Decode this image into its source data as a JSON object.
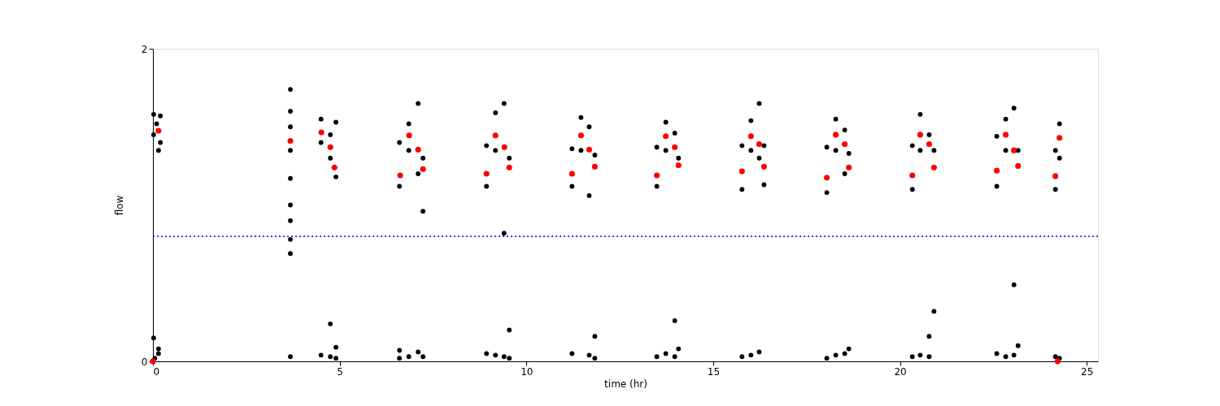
{
  "chart_data": {
    "type": "scatter",
    "xlabel": "time (hr)",
    "ylabel": "flow",
    "xlim": [
      0,
      25.3
    ],
    "ylim": [
      0,
      2
    ],
    "xticks": [
      0,
      5,
      10,
      15,
      20,
      25
    ],
    "yticks": [
      0,
      2
    ],
    "grid": false,
    "marker": "circle",
    "series": [
      {
        "color": "#000000",
        "x": [
          0.02,
          0.02,
          0.1,
          0.15,
          0.2,
          0.2,
          0.02,
          0.15,
          0.15,
          0.05,
          3.68,
          3.68,
          3.68,
          3.68,
          3.68,
          3.68,
          3.68,
          3.68,
          3.68,
          3.68,
          4.5,
          4.5,
          4.5,
          4.75,
          4.75,
          4.75,
          4.75,
          4.9,
          4.9,
          4.9,
          4.9,
          6.6,
          6.6,
          6.6,
          6.6,
          6.85,
          6.85,
          6.85,
          7.1,
          7.1,
          7.1,
          7.23,
          7.23,
          7.23,
          8.93,
          8.93,
          8.93,
          9.17,
          9.17,
          9.17,
          9.4,
          9.4,
          9.4,
          9.54,
          9.54,
          9.54,
          11.22,
          11.22,
          11.22,
          11.46,
          11.46,
          11.68,
          11.68,
          11.68,
          11.83,
          11.83,
          11.83,
          13.49,
          13.49,
          13.49,
          13.73,
          13.73,
          13.73,
          13.97,
          13.97,
          13.97,
          14.07,
          14.07,
          15.77,
          15.77,
          15.77,
          16.01,
          16.01,
          16.01,
          16.23,
          16.23,
          16.23,
          16.36,
          16.36,
          18.04,
          18.04,
          18.04,
          18.28,
          18.28,
          18.28,
          18.52,
          18.52,
          18.52,
          18.63,
          18.63,
          20.33,
          20.33,
          20.33,
          20.54,
          20.54,
          20.54,
          20.78,
          20.78,
          20.78,
          20.91,
          20.91,
          22.59,
          22.59,
          22.59,
          22.83,
          22.83,
          22.83,
          23.05,
          23.05,
          23.05,
          23.16,
          23.16,
          24.16,
          24.16,
          24.16,
          24.27,
          24.27,
          24.27
        ],
        "values": [
          1.58,
          1.45,
          1.52,
          1.35,
          1.57,
          1.4,
          0.15,
          0.08,
          0.05,
          0.02,
          1.74,
          1.6,
          1.5,
          1.35,
          1.17,
          1.0,
          0.9,
          0.78,
          0.69,
          0.03,
          1.55,
          1.4,
          0.04,
          1.45,
          1.3,
          0.24,
          0.03,
          1.53,
          1.18,
          0.09,
          0.02,
          1.4,
          1.12,
          0.07,
          0.02,
          1.52,
          1.35,
          0.03,
          1.65,
          1.2,
          0.06,
          1.3,
          0.96,
          0.03,
          1.38,
          1.12,
          0.05,
          1.59,
          1.35,
          0.04,
          1.65,
          0.82,
          0.03,
          1.3,
          0.2,
          0.02,
          1.36,
          1.12,
          0.05,
          1.56,
          1.35,
          1.5,
          1.06,
          0.04,
          1.32,
          0.16,
          0.02,
          1.37,
          1.12,
          0.03,
          1.53,
          1.35,
          0.05,
          1.46,
          0.26,
          0.03,
          1.3,
          0.08,
          1.38,
          1.1,
          0.03,
          1.54,
          1.35,
          0.04,
          1.65,
          1.3,
          0.06,
          1.38,
          1.13,
          1.37,
          1.08,
          0.02,
          1.55,
          1.35,
          0.04,
          1.48,
          1.2,
          0.05,
          1.33,
          0.08,
          1.38,
          1.1,
          0.03,
          1.58,
          1.35,
          0.04,
          1.45,
          0.16,
          0.03,
          1.35,
          0.32,
          1.44,
          1.12,
          0.05,
          1.55,
          1.35,
          0.03,
          1.62,
          0.49,
          0.04,
          1.35,
          0.1,
          1.35,
          1.1,
          0.03,
          1.52,
          1.3,
          0.02
        ]
      },
      {
        "color": "#ff0000",
        "x": [
          0.0,
          0.15,
          3.68,
          4.51,
          4.75,
          4.86,
          6.62,
          6.86,
          7.1,
          7.23,
          8.93,
          9.17,
          9.41,
          9.54,
          11.22,
          11.46,
          11.68,
          11.83,
          13.49,
          13.73,
          13.97,
          14.07,
          15.77,
          16.01,
          16.23,
          16.36,
          18.04,
          18.28,
          18.52,
          18.63,
          20.33,
          20.54,
          20.78,
          20.91,
          22.59,
          22.83,
          23.05,
          23.16,
          24.16,
          24.27,
          24.22
        ],
        "values": [
          0.0,
          1.475,
          1.41,
          1.465,
          1.37,
          1.24,
          1.19,
          1.445,
          1.355,
          1.23,
          1.2,
          1.445,
          1.37,
          1.24,
          1.2,
          1.445,
          1.355,
          1.245,
          1.19,
          1.44,
          1.37,
          1.255,
          1.215,
          1.44,
          1.39,
          1.245,
          1.175,
          1.45,
          1.39,
          1.24,
          1.19,
          1.45,
          1.39,
          1.24,
          1.22,
          1.45,
          1.35,
          1.25,
          1.185,
          1.43,
          0.0
        ]
      }
    ],
    "ref_lines": [
      {
        "axis": "y",
        "value": 0.8,
        "color": "#0000ff",
        "line_style": "dotted"
      }
    ]
  }
}
